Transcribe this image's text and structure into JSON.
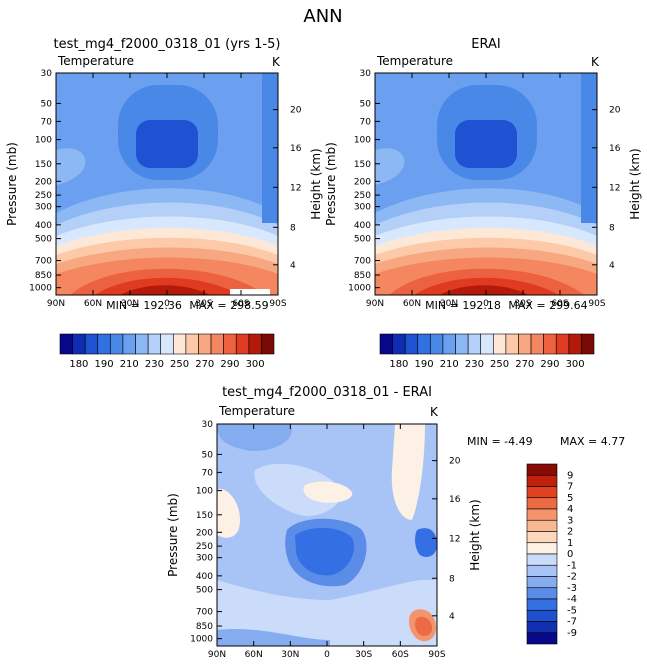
{
  "page_title": "ANN",
  "colors": {
    "temp_scale": [
      "#08088a",
      "#0f2db4",
      "#1e52d2",
      "#3070e0",
      "#4a88e8",
      "#6aa0ef",
      "#8cb8f4",
      "#b4d0f8",
      "#d8e8fc",
      "#fde8d8",
      "#fccaa8",
      "#f8a880",
      "#f48660",
      "#ec6240",
      "#e03a20",
      "#b41a0a",
      "#7a0a05"
    ],
    "diff_scale": [
      "#08088a",
      "#1030b0",
      "#1e50d0",
      "#3470e4",
      "#5a8ce8",
      "#86acf0",
      "#a8c4f6",
      "#cadcfa",
      "#fdf0e4",
      "#fcd8bc",
      "#f8b894",
      "#f4946c",
      "#ec6a44",
      "#e04220",
      "#c0200c",
      "#8a0a06"
    ]
  },
  "chart_data": [
    {
      "type": "heatmap",
      "title": "test_mg4_f2000_0318_01 (yrs 1-5)",
      "left_label": "Temperature",
      "right_label": "K",
      "ylabel": "Pressure (mb)",
      "ylabel_right": "Height (km)",
      "x_ticks": [
        "90N",
        "60N",
        "30N",
        "0",
        "30S",
        "60S",
        "90S"
      ],
      "y_ticks": [
        "30",
        "50",
        "70",
        "100",
        "150",
        "200",
        "250",
        "300",
        "400",
        "500",
        "700",
        "850",
        "1000"
      ],
      "height_ticks": [
        "20",
        "16",
        "12",
        "8",
        "4"
      ],
      "min_label": "MIN = 192.36",
      "max_label": "MAX = 298.59",
      "colorbar_labels": [
        "180",
        "190",
        "210",
        "230",
        "250",
        "270",
        "290",
        "300"
      ]
    },
    {
      "type": "heatmap",
      "title": "ERAI",
      "left_label": "Temperature",
      "right_label": "K",
      "ylabel": "Pressure (mb)",
      "ylabel_right": "Height (km)",
      "x_ticks": [
        "90N",
        "60N",
        "30N",
        "0",
        "30S",
        "60S",
        "90S"
      ],
      "y_ticks": [
        "30",
        "50",
        "70",
        "100",
        "150",
        "200",
        "250",
        "300",
        "400",
        "500",
        "700",
        "850",
        "1000"
      ],
      "height_ticks": [
        "20",
        "16",
        "12",
        "8",
        "4"
      ],
      "min_label": "MIN = 192.18",
      "max_label": "MAX = 299.64",
      "colorbar_labels": [
        "180",
        "190",
        "210",
        "230",
        "250",
        "270",
        "290",
        "300"
      ]
    },
    {
      "type": "heatmap",
      "title": "test_mg4_f2000_0318_01 - ERAI",
      "left_label": "Temperature",
      "right_label": "K",
      "ylabel": "Pressure (mb)",
      "ylabel_right": "Height (km)",
      "x_ticks": [
        "90N",
        "60N",
        "30N",
        "0",
        "30S",
        "60S",
        "90S"
      ],
      "y_ticks": [
        "30",
        "50",
        "70",
        "100",
        "150",
        "200",
        "250",
        "300",
        "400",
        "500",
        "700",
        "850",
        "1000"
      ],
      "height_ticks": [
        "20",
        "16",
        "12",
        "8",
        "4"
      ],
      "min_label": "MIN = -4.49",
      "max_label": "MAX = 4.77",
      "colorbar_labels": [
        "9",
        "7",
        "5",
        "4",
        "3",
        "2",
        "1",
        "0",
        "-1",
        "-2",
        "-3",
        "-4",
        "-5",
        "-7",
        "-9"
      ]
    }
  ]
}
